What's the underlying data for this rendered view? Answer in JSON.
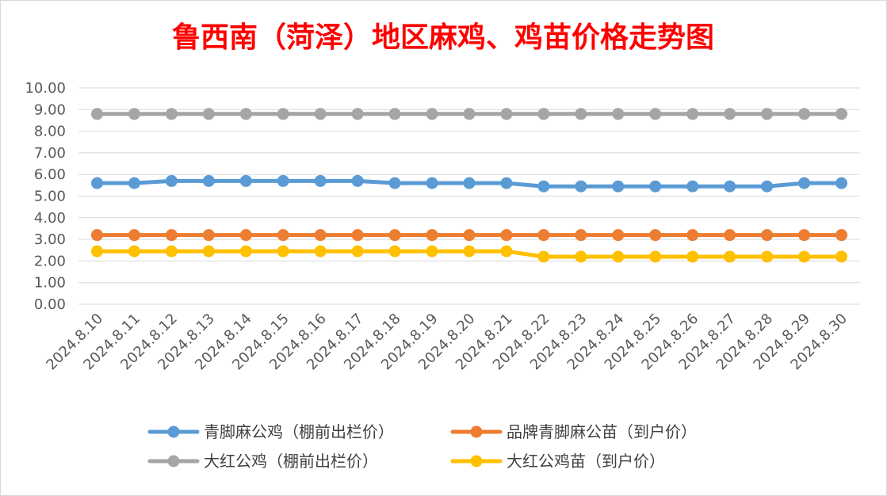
{
  "chart_data": {
    "type": "line",
    "title": "鲁西南（菏泽）地区麻鸡、鸡苗价格走势图",
    "xlabel": "",
    "ylabel": "",
    "categories": [
      "2024.8.10",
      "2024.8.11",
      "2024.8.12",
      "2024.8.13",
      "2024.8.14",
      "2024.8.15",
      "2024.8.16",
      "2024.8.17",
      "2024.8.18",
      "2024.8.19",
      "2024.8.20",
      "2024.8.21",
      "2024.8.22",
      "2024.8.23",
      "2024.8.24",
      "2024.8.25",
      "2024.8.26",
      "2024.8.27",
      "2024.8.28",
      "2024.8.29",
      "2024.8.30"
    ],
    "ylim": [
      0,
      10
    ],
    "yticks": [
      "0.00",
      "1.00",
      "2.00",
      "3.00",
      "4.00",
      "5.00",
      "6.00",
      "7.00",
      "8.00",
      "9.00",
      "10.00"
    ],
    "grid": true,
    "legend_position": "bottom",
    "series": [
      {
        "name": "青脚麻公鸡（棚前出栏价）",
        "color": "#5b9bd5",
        "values": [
          5.6,
          5.6,
          5.7,
          5.7,
          5.7,
          5.7,
          5.7,
          5.7,
          5.6,
          5.6,
          5.6,
          5.6,
          5.45,
          5.45,
          5.45,
          5.45,
          5.45,
          5.45,
          5.45,
          5.6,
          5.6
        ]
      },
      {
        "name": "品牌青脚麻公苗（到户价）",
        "color": "#ed7d31",
        "values": [
          3.2,
          3.2,
          3.2,
          3.2,
          3.2,
          3.2,
          3.2,
          3.2,
          3.2,
          3.2,
          3.2,
          3.2,
          3.2,
          3.2,
          3.2,
          3.2,
          3.2,
          3.2,
          3.2,
          3.2,
          3.2
        ]
      },
      {
        "name": "大红公鸡（棚前出栏价）",
        "color": "#a5a5a5",
        "values": [
          8.8,
          8.8,
          8.8,
          8.8,
          8.8,
          8.8,
          8.8,
          8.8,
          8.8,
          8.8,
          8.8,
          8.8,
          8.8,
          8.8,
          8.8,
          8.8,
          8.8,
          8.8,
          8.8,
          8.8,
          8.8
        ]
      },
      {
        "name": "大红公鸡苗（到户价）",
        "color": "#ffc000",
        "values": [
          2.45,
          2.45,
          2.45,
          2.45,
          2.45,
          2.45,
          2.45,
          2.45,
          2.45,
          2.45,
          2.45,
          2.45,
          2.2,
          2.2,
          2.2,
          2.2,
          2.2,
          2.2,
          2.2,
          2.2,
          2.2
        ]
      }
    ]
  }
}
